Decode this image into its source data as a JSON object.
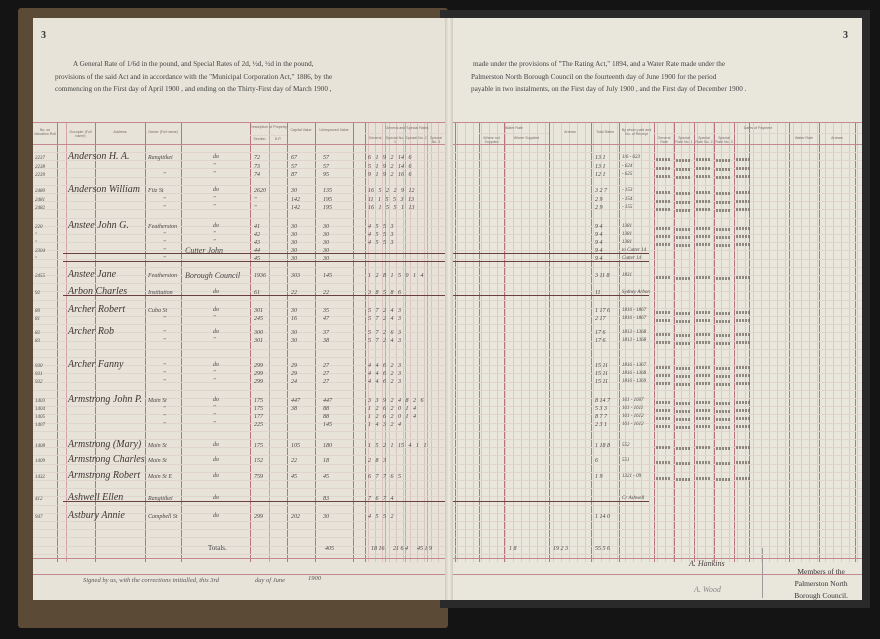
{
  "left_page": {
    "page_number": "3",
    "header_lines": [
      "A General Rate of  1/6d  in the pound, and Special Rates of 2d, ½d, ½d  in the pound,",
      "provisions of the said Act and in accordance with the \"Municipal Corporation Act,\" 1886, by the",
      "commencing on the First day of April 1900 , and ending on the Thirty-First day of March 1900 ,"
    ],
    "columns": [
      "No. on Valuation Roll",
      "Occupier (Full name)",
      "Address",
      "Owner (Full name)",
      "Description of Property",
      "Section",
      "D.P.",
      "Capital Value",
      "Unimproved Value",
      "General and Special Rates",
      "General",
      "Special No. 1",
      "Special No. 2",
      "Special No. 3"
    ],
    "totals_label": "Totals.",
    "totals_values": [
      "405",
      "18 16",
      "21 6 4",
      "45 1 9"
    ],
    "footer": {
      "signed_text": "Signed by us, with the corrections initialled, this 3rd",
      "day_of": "day of June",
      "year": "1900"
    }
  },
  "right_page": {
    "page_number": "3",
    "header_lines": [
      "made under the provisions of \"The Rating Act,\" 1894, and a Water Rate made under the",
      "Palmerston North Borough Council on the fourteenth day of June 1900 for the period",
      "payable in two instalments, on the First day of July 1900 , and the First day of December 1900 ."
    ],
    "columns": [
      "Water Rate",
      "Where not Supplied",
      "Where Supplied",
      "Arrears",
      "Total Rates",
      "By whom paid and No. of Receipt",
      "Dates of Payment",
      "General Rate",
      "Special Rate No. 1",
      "Special Rate No. 2",
      "Special Rate No. 3",
      "Water Rate",
      "Arrears"
    ],
    "totals_values": [
      "1 8",
      "19 2 3",
      "55 5 6"
    ],
    "signatures": [
      "A. Hankins",
      "A. Wood"
    ],
    "members": [
      "Members of the",
      "Palmerston North",
      "Borough Council."
    ]
  },
  "rows": [
    {
      "no": "2237",
      "occupier": "Anderson H. A.",
      "address": "Rangitikei",
      "owner": "do",
      "section": "72",
      "capital": "67",
      "unimproved": "57",
      "rates": "6 1   9 2   14   6",
      "total": "13 1",
      "receipt": "1/6 - 623"
    },
    {
      "no": "2238",
      "occupier": "",
      "address": "",
      "owner": "\"",
      "section": "73",
      "capital": "57",
      "unimproved": "57",
      "rates": "5 1   9 2   14   6",
      "total": "13 1",
      "receipt": "- 624"
    },
    {
      "no": "2239",
      "occupier": "",
      "address": "\"",
      "owner": "\"",
      "section": "74",
      "capital": "87",
      "unimproved": "95",
      "rates": "9 1   9 2   16   6",
      "total": "12 1",
      "receipt": "- 625"
    },
    {
      "no": "2480",
      "occupier": "Anderson William",
      "address": "Fitz St",
      "owner": "do",
      "section": "2620",
      "capital": "30",
      "unimproved": "135",
      "rates": "16 5   2 2   9   12",
      "total": "3 2 7",
      "receipt": "- 153"
    },
    {
      "no": "2481",
      "occupier": "",
      "address": "\"",
      "owner": "\"",
      "section": "\"",
      "capital": "142",
      "unimproved": "195",
      "rates": "11 1   5 5   3   13",
      "total": "2 9",
      "receipt": "- 154"
    },
    {
      "no": "2482",
      "occupier": "",
      "address": "\"",
      "owner": "\"",
      "section": "\"",
      "capital": "142",
      "unimproved": "195",
      "rates": "16 1   5 5   1   13",
      "total": "2 9",
      "receipt": "- 155"
    },
    {
      "no": "220",
      "occupier": "Anstee John G.",
      "address": "Featherston",
      "owner": "do",
      "section": "41",
      "capital": "30",
      "unimproved": "30",
      "rates": "4 5   5   3",
      "total": "9 4",
      "receipt": "1381"
    },
    {
      "no": "\"",
      "occupier": "",
      "address": "\"",
      "owner": "\"",
      "section": "42",
      "capital": "30",
      "unimproved": "30",
      "rates": "4 5   5   3",
      "total": "9 4",
      "receipt": "1381"
    },
    {
      "no": "\"",
      "occupier": "",
      "address": "\"",
      "owner": "\"",
      "section": "43",
      "capital": "30",
      "unimproved": "30",
      "rates": "4 5   5   3",
      "total": "9 4",
      "receipt": "1381"
    },
    {
      "no": "2304",
      "occupier": "",
      "address": "\"",
      "owner": "Cutter John",
      "section": "44",
      "capital": "30",
      "unimproved": "30",
      "rates": "",
      "total": "9 4",
      "receipt": "to Cutter 14",
      "struck": true
    },
    {
      "no": "\"",
      "occupier": "",
      "address": "\"",
      "owner": "",
      "section": "45",
      "capital": "30",
      "unimproved": "30",
      "rates": "",
      "total": "9 4",
      "receipt": "Cutter 14",
      "struck": true
    },
    {
      "no": "2455",
      "occupier": "Anstee Jane",
      "address": "Featherston",
      "owner": "Borough Council",
      "section": "1936",
      "capital": "303",
      "unimproved": "145",
      "rates": "1 2 8   1 5 0   1 4",
      "total": "3 11 8",
      "receipt": "1831"
    },
    {
      "no": "92",
      "occupier": "Arbon Charles",
      "address": "Institution",
      "owner": "do",
      "section": "61",
      "capital": "22",
      "unimproved": "22",
      "rates": "3 8   5 8   6",
      "total": "11",
      "receipt": "Sydney Arbon",
      "struck": true
    },
    {
      "no": "80",
      "occupier": "Archer Robert",
      "address": "Cuba St",
      "owner": "do",
      "section": "301",
      "capital": "30",
      "unimproved": "35",
      "rates": "5 7   2 4   3",
      "total": "1 17 6",
      "receipt": "1816 - 1867"
    },
    {
      "no": "81",
      "occupier": "",
      "address": "\"",
      "owner": "\"",
      "section": "245",
      "capital": "16",
      "unimproved": "47",
      "rates": "5 7   2 4   3",
      "total": "2 17",
      "receipt": "1816 - 1867"
    },
    {
      "no": "82",
      "occupier": "Archer Rob",
      "address": "\"",
      "owner": "do",
      "section": "300",
      "capital": "30",
      "unimproved": "37",
      "rates": "5 7   2 6   3",
      "total": "17 6",
      "receipt": "1813 - 1368"
    },
    {
      "no": "83",
      "occupier": "",
      "address": "\"",
      "owner": "\"",
      "section": "301",
      "capital": "30",
      "unimproved": "38",
      "rates": "5 7   2 4   3",
      "total": "17 6",
      "receipt": "1813 - 1368"
    },
    {
      "no": "930",
      "occupier": "Archer Fanny",
      "address": "\"",
      "owner": "do",
      "section": "299",
      "capital": "29",
      "unimproved": "27",
      "rates": "4   4 6   2   3",
      "total": "15 11",
      "receipt": "1816 - 1367"
    },
    {
      "no": "931",
      "occupier": "",
      "address": "\"",
      "owner": "\"",
      "section": "299",
      "capital": "29",
      "unimproved": "27",
      "rates": "4   4 6   2   3",
      "total": "15 11",
      "receipt": "1816 - 1368"
    },
    {
      "no": "932",
      "occupier": "",
      "address": "\"",
      "owner": "\"",
      "section": "299",
      "capital": "24",
      "unimproved": "27",
      "rates": "4   4 6   2   3",
      "total": "15 11",
      "receipt": "1816 - 1369"
    },
    {
      "no": "1403",
      "occupier": "Armstrong John P.",
      "address": "Main St",
      "owner": "do",
      "section": "175",
      "capital": "447",
      "unimproved": "447",
      "rates": "3 3 9   2 4 8   2 6",
      "total": "8 14 7",
      "receipt": "161 - 1607"
    },
    {
      "no": "1404",
      "occupier": "",
      "address": "\"",
      "owner": "\"",
      "section": "175",
      "capital": "38",
      "unimproved": "88",
      "rates": "1 2 6   2 0   1 4",
      "total": "5 3 3",
      "receipt": "161 - 1611"
    },
    {
      "no": "1405",
      "occupier": "",
      "address": "\"",
      "owner": "\"",
      "section": "177",
      "capital": "",
      "unimproved": "88",
      "rates": "1 2 6   2 0   1 4",
      "total": "8 7 7",
      "receipt": "161 - 1612"
    },
    {
      "no": "1407",
      "occupier": "",
      "address": "\"",
      "owner": "\"",
      "section": "225",
      "capital": "",
      "unimproved": "145",
      "rates": "1 4 3   2 4",
      "total": "2 3 1",
      "receipt": "161 - 1612"
    },
    {
      "no": "1408",
      "occupier": "Armstrong (Mary)",
      "address": "Main St",
      "owner": "do",
      "section": "175",
      "capital": "105",
      "unimproved": "180",
      "rates": "1 5 2   1 15 4   1 1",
      "total": "1 18 8",
      "receipt": "552"
    },
    {
      "no": "1409",
      "occupier": "Armstrong Charles",
      "address": "Main St",
      "owner": "do",
      "section": "152",
      "capital": "22",
      "unimproved": "18",
      "rates": "2 8   3",
      "total": "6",
      "receipt": "551"
    },
    {
      "no": "1432",
      "occupier": "Armstrong Robert",
      "address": "Main St E",
      "owner": "do",
      "section": "759",
      "capital": "45",
      "unimproved": "45",
      "rates": "6 7   7 6   5",
      "total": "1 9",
      "receipt": "1321 - 09"
    },
    {
      "no": "412",
      "occupier": "Ashwell Ellen",
      "address": "Rangitikei",
      "owner": "do",
      "section": "",
      "capital": "",
      "unimproved": "83",
      "rates": "7 6   7 4",
      "total": "",
      "receipt": "Cr Ashwell",
      "struck": true
    },
    {
      "no": "947",
      "occupier": "Astbury Annie",
      "address": "Campbell St",
      "owner": "do",
      "section": "299",
      "capital": "202",
      "unimproved": "30",
      "rates": "4 5   5   2",
      "total": "1 14 0",
      "receipt": ""
    }
  ],
  "colors": {
    "ruling_red": "#c48990",
    "paper": "#e7e3d8",
    "ink": "#3d3631",
    "background": "#141414"
  }
}
